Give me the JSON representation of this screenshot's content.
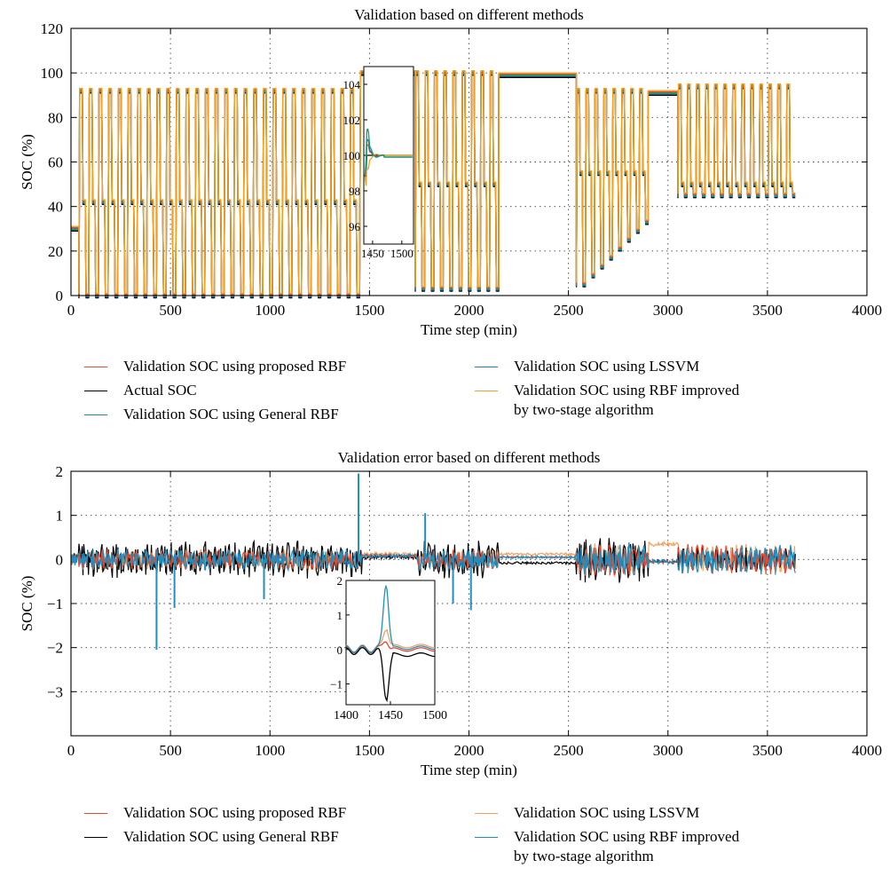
{
  "chart_data": [
    {
      "type": "line",
      "title": "Validation based on different methods",
      "xlabel": "Time step (min)",
      "ylabel": "SOC (%)",
      "xlim": [
        0,
        4000
      ],
      "ylim": [
        0,
        120
      ],
      "xticks": [
        "0",
        "500",
        "1000",
        "1500",
        "2000",
        "2500",
        "3000",
        "3500",
        "4000"
      ],
      "yticks": [
        "0",
        "20",
        "40",
        "60",
        "80",
        "100",
        "120"
      ],
      "grid": true,
      "legend_position": "bottom",
      "series": [
        {
          "name": "Validation SOC using proposed RBF",
          "color": "#e8472a"
        },
        {
          "name": "Actual SOC",
          "color": "#000000"
        },
        {
          "name": "Validation SOC using General RBF",
          "color": "#1a9a6e"
        },
        {
          "name": "Validation SOC using LSSVM",
          "color": "#1f7fb3"
        },
        {
          "name": "Validation SOC using RBF improved",
          "name_line2": "by two-stage algorithm",
          "color": "#f2a01e"
        }
      ],
      "profile_segments": [
        {
          "x_start": 0,
          "x_end": 40,
          "cycles": 0,
          "high": 30,
          "mid": 30,
          "low": 30
        },
        {
          "x_start": 40,
          "x_end": 1450,
          "cycles": 29,
          "high": 92,
          "mid": 42,
          "low": 0
        },
        {
          "x_start": 1455,
          "x_end": 1730,
          "cycles": 0,
          "high": 100,
          "mid": 100,
          "low": 100
        },
        {
          "x_start": 1730,
          "x_end": 2150,
          "cycles": 9,
          "high": 100,
          "mid": 50,
          "low": 3
        },
        {
          "x_start": 2150,
          "x_end": 2540,
          "cycles": 0,
          "high": 99,
          "mid": 99,
          "low": 99
        },
        {
          "x_start": 2540,
          "x_end": 2900,
          "cycles": 8,
          "high": 92,
          "mid": 55,
          "low": 5
        },
        {
          "x_start": 2900,
          "x_end": 3050,
          "cycles": 0,
          "high": 91,
          "mid": 91,
          "low": 91
        },
        {
          "x_start": 3050,
          "x_end": 3640,
          "cycles": 13,
          "high": 94,
          "mid": 50,
          "low": 45
        }
      ],
      "inset": {
        "xlim": [
          1435,
          1520
        ],
        "ylim": [
          95,
          105
        ],
        "xticks": [
          "1450",
          "1500"
        ],
        "yticks": [
          "96",
          "98",
          "100",
          "102",
          "104"
        ]
      }
    },
    {
      "type": "line",
      "title": "Validation error based on different methods",
      "xlabel": "Time step (min)",
      "ylabel": "SOC (%)",
      "xlim": [
        0,
        4000
      ],
      "ylim": [
        -4,
        2
      ],
      "xticks": [
        "0",
        "500",
        "1000",
        "1500",
        "2000",
        "2500",
        "3000",
        "3500",
        "4000"
      ],
      "yticks": [
        "−3",
        "−2",
        "−1",
        "0",
        "1",
        "2"
      ],
      "grid": true,
      "legend_position": "bottom",
      "series": [
        {
          "name": "Validation SOC using proposed RBF",
          "color": "#e8472a"
        },
        {
          "name": "Validation SOC using General RBF",
          "color": "#000000"
        },
        {
          "name": "Validation SOC using LSSVM",
          "color": "#f4a060"
        },
        {
          "name": "Validation SOC using RBF improved",
          "name_line2": "by two-stage algorithm",
          "color": "#1f8fc0"
        }
      ],
      "spikes": [
        {
          "x": 430,
          "y": -2.05
        },
        {
          "x": 520,
          "y": -1.1
        },
        {
          "x": 970,
          "y": -0.9
        },
        {
          "x": 1445,
          "y": 1.95
        },
        {
          "x": 1780,
          "y": 1.05
        },
        {
          "x": 1920,
          "y": -1.0
        },
        {
          "x": 2010,
          "y": -1.15
        }
      ],
      "inset": {
        "xlim": [
          1400,
          1500
        ],
        "ylim": [
          -1.6,
          2
        ],
        "xticks": [
          "1400",
          "1450",
          "1500"
        ],
        "yticks": [
          "−1",
          "0",
          "1",
          "2"
        ]
      }
    }
  ]
}
